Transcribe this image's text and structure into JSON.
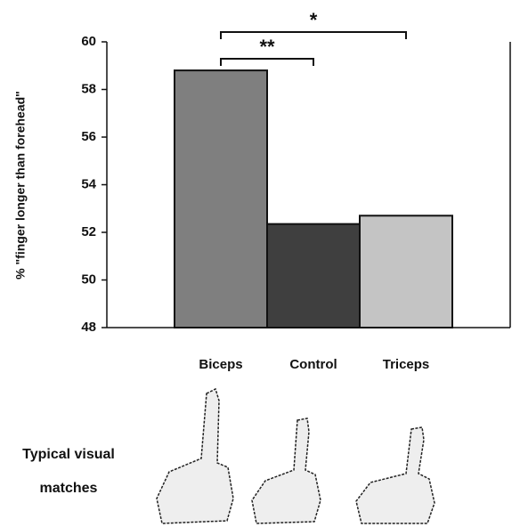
{
  "chart_data": {
    "type": "bar",
    "y_label": "% \"finger longer than forehead\"",
    "categories": [
      "Biceps",
      "Control",
      "Triceps"
    ],
    "values": [
      58.8,
      52.35,
      52.7
    ],
    "colors": [
      "#7f7f7f",
      "#3f3f3f",
      "#c4c4c4"
    ],
    "ylim": [
      48,
      60
    ],
    "yticks": [
      48,
      50,
      52,
      54,
      56,
      58,
      60
    ],
    "annotations": [
      "**",
      "*"
    ],
    "row_label": "Typical visual matches"
  }
}
